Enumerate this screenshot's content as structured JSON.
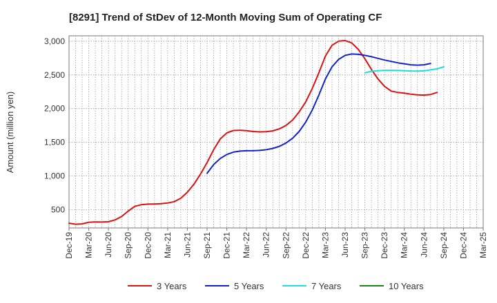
{
  "chart_data": {
    "type": "line",
    "title": "[8291]  Trend of StDev of 12-Month Moving Sum of Operating CF",
    "xlabel": "",
    "ylabel": "Amount (million yen)",
    "ylim": [
      230,
      3080
    ],
    "y_ticks": [
      500,
      1000,
      1500,
      2000,
      2500,
      3000
    ],
    "y_tick_labels": [
      "500",
      "1,000",
      "1,500",
      "2,000",
      "2,500",
      "3,000"
    ],
    "x_tick_labels": [
      "Dec-19",
      "Mar-20",
      "Jun-20",
      "Sep-20",
      "Dec-20",
      "Mar-21",
      "Jun-21",
      "Sep-21",
      "Dec-21",
      "Mar-22",
      "Jun-22",
      "Sep-22",
      "Dec-22",
      "Mar-23",
      "Jun-23",
      "Sep-23",
      "Dec-23",
      "Mar-24",
      "Jun-24",
      "Sep-24",
      "Dec-24",
      "Mar-25"
    ],
    "grid": true,
    "legend_position": "bottom",
    "series": [
      {
        "name": "3 Years",
        "color": "#dd1111",
        "start_index": 0,
        "values": [
          300,
          285,
          290,
          315,
          320,
          318,
          322,
          350,
          400,
          480,
          550,
          575,
          583,
          585,
          590,
          600,
          620,
          670,
          760,
          880,
          1030,
          1200,
          1390,
          1550,
          1640,
          1675,
          1680,
          1672,
          1660,
          1655,
          1658,
          1670,
          1700,
          1750,
          1830,
          1950,
          2100,
          2300,
          2530,
          2780,
          2940,
          3000,
          3010,
          2975,
          2880,
          2740,
          2580,
          2440,
          2330,
          2260,
          2240,
          2230,
          2215,
          2205,
          2200,
          2210,
          2240
        ]
      },
      {
        "name": "5 Years",
        "color": "#1122cc",
        "start_index": 21,
        "values": [
          1040,
          1170,
          1260,
          1320,
          1355,
          1370,
          1375,
          1375,
          1380,
          1390,
          1410,
          1440,
          1490,
          1560,
          1660,
          1800,
          1980,
          2200,
          2440,
          2620,
          2730,
          2790,
          2810,
          2805,
          2790,
          2770,
          2745,
          2720,
          2700,
          2680,
          2665,
          2650,
          2645,
          2650,
          2670
        ]
      },
      {
        "name": "7 Years",
        "color": "#22dddd",
        "start_index": 45,
        "values": [
          2530,
          2555,
          2562,
          2568,
          2568,
          2566,
          2562,
          2558,
          2556,
          2560,
          2575,
          2590,
          2620
        ]
      },
      {
        "name": "10 Years",
        "color": "#118811",
        "start_index": 0,
        "values": []
      }
    ]
  }
}
